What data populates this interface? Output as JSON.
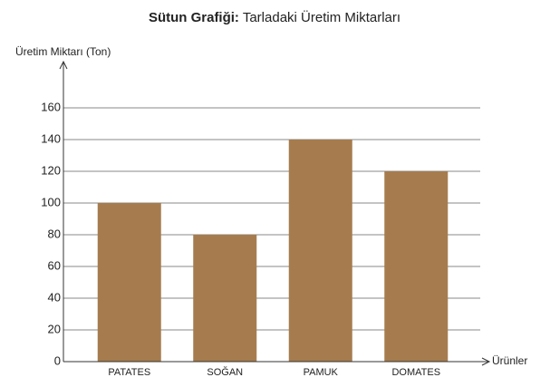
{
  "chart_data": {
    "type": "bar",
    "title_label": "Sütun Grafiği:",
    "title": "Tarladaki Üretim Miktarları",
    "y_label": "Üretim Miktarı (Ton)",
    "x_label": "Ürünler",
    "categories": [
      "PATATES",
      "SOĞAN",
      "PAMUK",
      "DOMATES"
    ],
    "values": [
      100,
      80,
      140,
      120
    ],
    "color": "#a67c4e",
    "ylim": [
      0,
      160
    ],
    "yticks": [
      0,
      20,
      40,
      60,
      80,
      100,
      120,
      140,
      160
    ],
    "grid": true
  }
}
